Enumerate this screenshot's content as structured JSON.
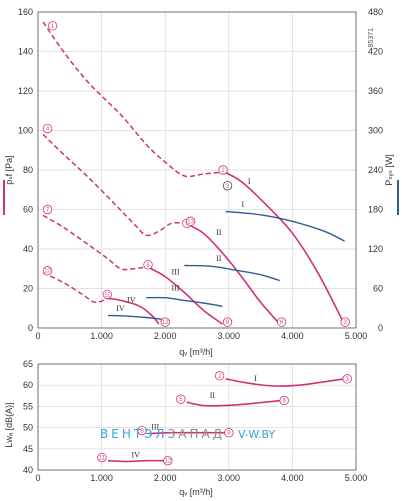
{
  "colors": {
    "pressure": "#d0307a",
    "power": "#2f5f8f",
    "grid": "#d9d9d9",
    "axis": "#555555",
    "watermark_blue": "#3aa0d8",
    "watermark_gray": "#8a8a8a"
  },
  "watermark": {
    "part1": "ВЕНТЭЛ",
    "part2": "ЗАПАД",
    "part3": "V-W.BY"
  },
  "chart_data": [
    {
      "type": "line",
      "xlabel": "qᵥ [m³/h]",
      "ylabel": "pₛf [Pa]",
      "y2label": "Pₛᵧₛ [W]",
      "code": "85371",
      "xlim": [
        0,
        5000
      ],
      "ylim": [
        0,
        160
      ],
      "y2lim": [
        0,
        480
      ],
      "x_ticks": [
        0,
        1000,
        2000,
        3000,
        4000,
        5000
      ],
      "x_tick_labels": [
        "0",
        "1.000",
        "2.000",
        "3.000",
        "4.000",
        "5.000"
      ],
      "y_ticks": [
        0,
        20,
        40,
        60,
        80,
        100,
        120,
        140,
        160
      ],
      "y2_ticks": [
        0,
        60,
        120,
        180,
        240,
        300,
        360,
        420,
        480
      ],
      "grid": true,
      "pressure_series": [
        {
          "name": "I",
          "label_at": [
            3300,
            73
          ],
          "stable": [
            [
              2930,
              79
            ],
            [
              3200,
              74
            ],
            [
              3600,
              62
            ],
            [
              4000,
              48
            ],
            [
              4400,
              28
            ],
            [
              4800,
              3
            ]
          ],
          "unstable": [
            [
              80,
              155
            ],
            [
              400,
              140
            ],
            [
              800,
              124
            ],
            [
              1300,
              108
            ],
            [
              1700,
              93
            ],
            [
              2000,
              84
            ],
            [
              2300,
              77
            ],
            [
              2600,
              78
            ],
            [
              2930,
              79
            ]
          ]
        },
        {
          "name": "II",
          "label_at": [
            2800,
            47
          ],
          "stable": [
            [
              2320,
              53
            ],
            [
              2600,
              48
            ],
            [
              2900,
              38
            ],
            [
              3200,
              26
            ],
            [
              3500,
              13
            ],
            [
              3800,
              2
            ]
          ],
          "unstable": [
            [
              80,
              98
            ],
            [
              400,
              88
            ],
            [
              800,
              76
            ],
            [
              1200,
              63
            ],
            [
              1500,
              53
            ],
            [
              1700,
              47
            ],
            [
              1900,
              49
            ],
            [
              2100,
              53
            ],
            [
              2320,
              53
            ]
          ]
        },
        {
          "name": "III",
          "label_at": [
            2100,
            27
          ],
          "stable": [
            [
              1720,
              31
            ],
            [
              2000,
              26
            ],
            [
              2300,
              18
            ],
            [
              2600,
              9
            ],
            [
              2900,
              2
            ]
          ],
          "unstable": [
            [
              80,
              57
            ],
            [
              400,
              51
            ],
            [
              800,
              42
            ],
            [
              1100,
              35
            ],
            [
              1300,
              30
            ],
            [
              1500,
              30
            ],
            [
              1720,
              31
            ]
          ]
        },
        {
          "name": "IV",
          "label_at": [
            1400,
            13
          ],
          "stable": [
            [
              1100,
              15
            ],
            [
              1300,
              14
            ],
            [
              1600,
              11
            ],
            [
              1800,
              6
            ],
            [
              1900,
              2
            ]
          ],
          "unstable": [
            [
              80,
              28
            ],
            [
              400,
              23
            ],
            [
              700,
              17
            ],
            [
              900,
              13
            ],
            [
              1100,
              15
            ]
          ]
        }
      ],
      "power_series": [
        {
          "name": "I",
          "label_at": [
            3200,
            184
          ],
          "points": [
            [
              2950,
              177
            ],
            [
              3500,
              172
            ],
            [
              4000,
              162
            ],
            [
              4500,
              147
            ],
            [
              4820,
              132
            ]
          ]
        },
        {
          "name": "II",
          "label_at": [
            2800,
            102
          ],
          "points": [
            [
              2300,
              95
            ],
            [
              2700,
              94
            ],
            [
              3100,
              88
            ],
            [
              3500,
              81
            ],
            [
              3800,
              72
            ]
          ]
        },
        {
          "name": "III",
          "label_at": [
            2100,
            57
          ],
          "points": [
            [
              1700,
              46
            ],
            [
              2000,
              46
            ],
            [
              2300,
              42
            ],
            [
              2600,
              38
            ],
            [
              2900,
              33
            ]
          ]
        },
        {
          "name": "IV",
          "label_at": [
            1230,
            26
          ],
          "points": [
            [
              1100,
              19
            ],
            [
              1400,
              18
            ],
            [
              1700,
              16
            ],
            [
              1960,
              13
            ]
          ]
        }
      ],
      "point_markers": [
        {
          "n": "1",
          "x": 230,
          "y": 153
        },
        {
          "n": "2",
          "x": 2910,
          "y": 80
        },
        {
          "n": "3",
          "x": 4830,
          "y": 3
        },
        {
          "n": "4",
          "x": 150,
          "y": 101
        },
        {
          "n": "5",
          "x": 2340,
          "y": 53
        },
        {
          "n": "6",
          "x": 3830,
          "y": 3
        },
        {
          "n": "7",
          "x": 150,
          "y": 60
        },
        {
          "n": "8",
          "x": 1730,
          "y": 32
        },
        {
          "n": "9",
          "x": 2980,
          "y": 3
        },
        {
          "n": "10",
          "x": 150,
          "y": 29
        },
        {
          "n": "11",
          "x": 1090,
          "y": 17
        },
        {
          "n": "12",
          "x": 2000,
          "y": 3
        },
        {
          "n": "13",
          "x": 2400,
          "y": 54
        }
      ],
      "reference_markers": [
        {
          "n": "3",
          "x": 2980,
          "y": 72
        }
      ]
    },
    {
      "type": "line",
      "xlabel": "qᵥ [m³/h]",
      "ylabel": "Lwₐ [dB(A)]",
      "xlim": [
        0,
        5000
      ],
      "ylim": [
        40,
        65
      ],
      "x_ticks": [
        0,
        1000,
        2000,
        3000,
        4000,
        5000
      ],
      "x_tick_labels": [
        "0",
        "1.000",
        "2.000",
        "3.000",
        "4.000",
        "5.000"
      ],
      "y_ticks": [
        40,
        45,
        50,
        55,
        60,
        65
      ],
      "grid": true,
      "series": [
        {
          "name": "I",
          "label_at": [
            3400,
            61
          ],
          "points": [
            [
              2950,
              61.5
            ],
            [
              3300,
              60.5
            ],
            [
              3700,
              59.8
            ],
            [
              4100,
              60
            ],
            [
              4500,
              60.8
            ],
            [
              4830,
              61.5
            ]
          ],
          "markers": [
            "2",
            "3"
          ]
        },
        {
          "name": "II",
          "label_at": [
            2700,
            57
          ],
          "points": [
            [
              2340,
              56
            ],
            [
              2600,
              55.2
            ],
            [
              2900,
              55.2
            ],
            [
              3300,
              55.6
            ],
            [
              3700,
              56.2
            ],
            [
              3840,
              56.4
            ]
          ],
          "markers": [
            "5",
            "6"
          ]
        },
        {
          "name": "III",
          "label_at": [
            1780,
            49.5
          ],
          "points": [
            [
              1730,
              48.6
            ],
            [
              2100,
              48.8
            ],
            [
              2500,
              48.8
            ],
            [
              2970,
              48.8
            ]
          ],
          "markers": [
            "8",
            "9"
          ]
        },
        {
          "name": "IV",
          "label_at": [
            1470,
            42.9
          ],
          "points": [
            [
              1100,
              42.2
            ],
            [
              1400,
              42
            ],
            [
              1700,
              42.2
            ],
            [
              2010,
              42.2
            ]
          ],
          "markers": [
            "11",
            "12"
          ]
        }
      ]
    }
  ]
}
